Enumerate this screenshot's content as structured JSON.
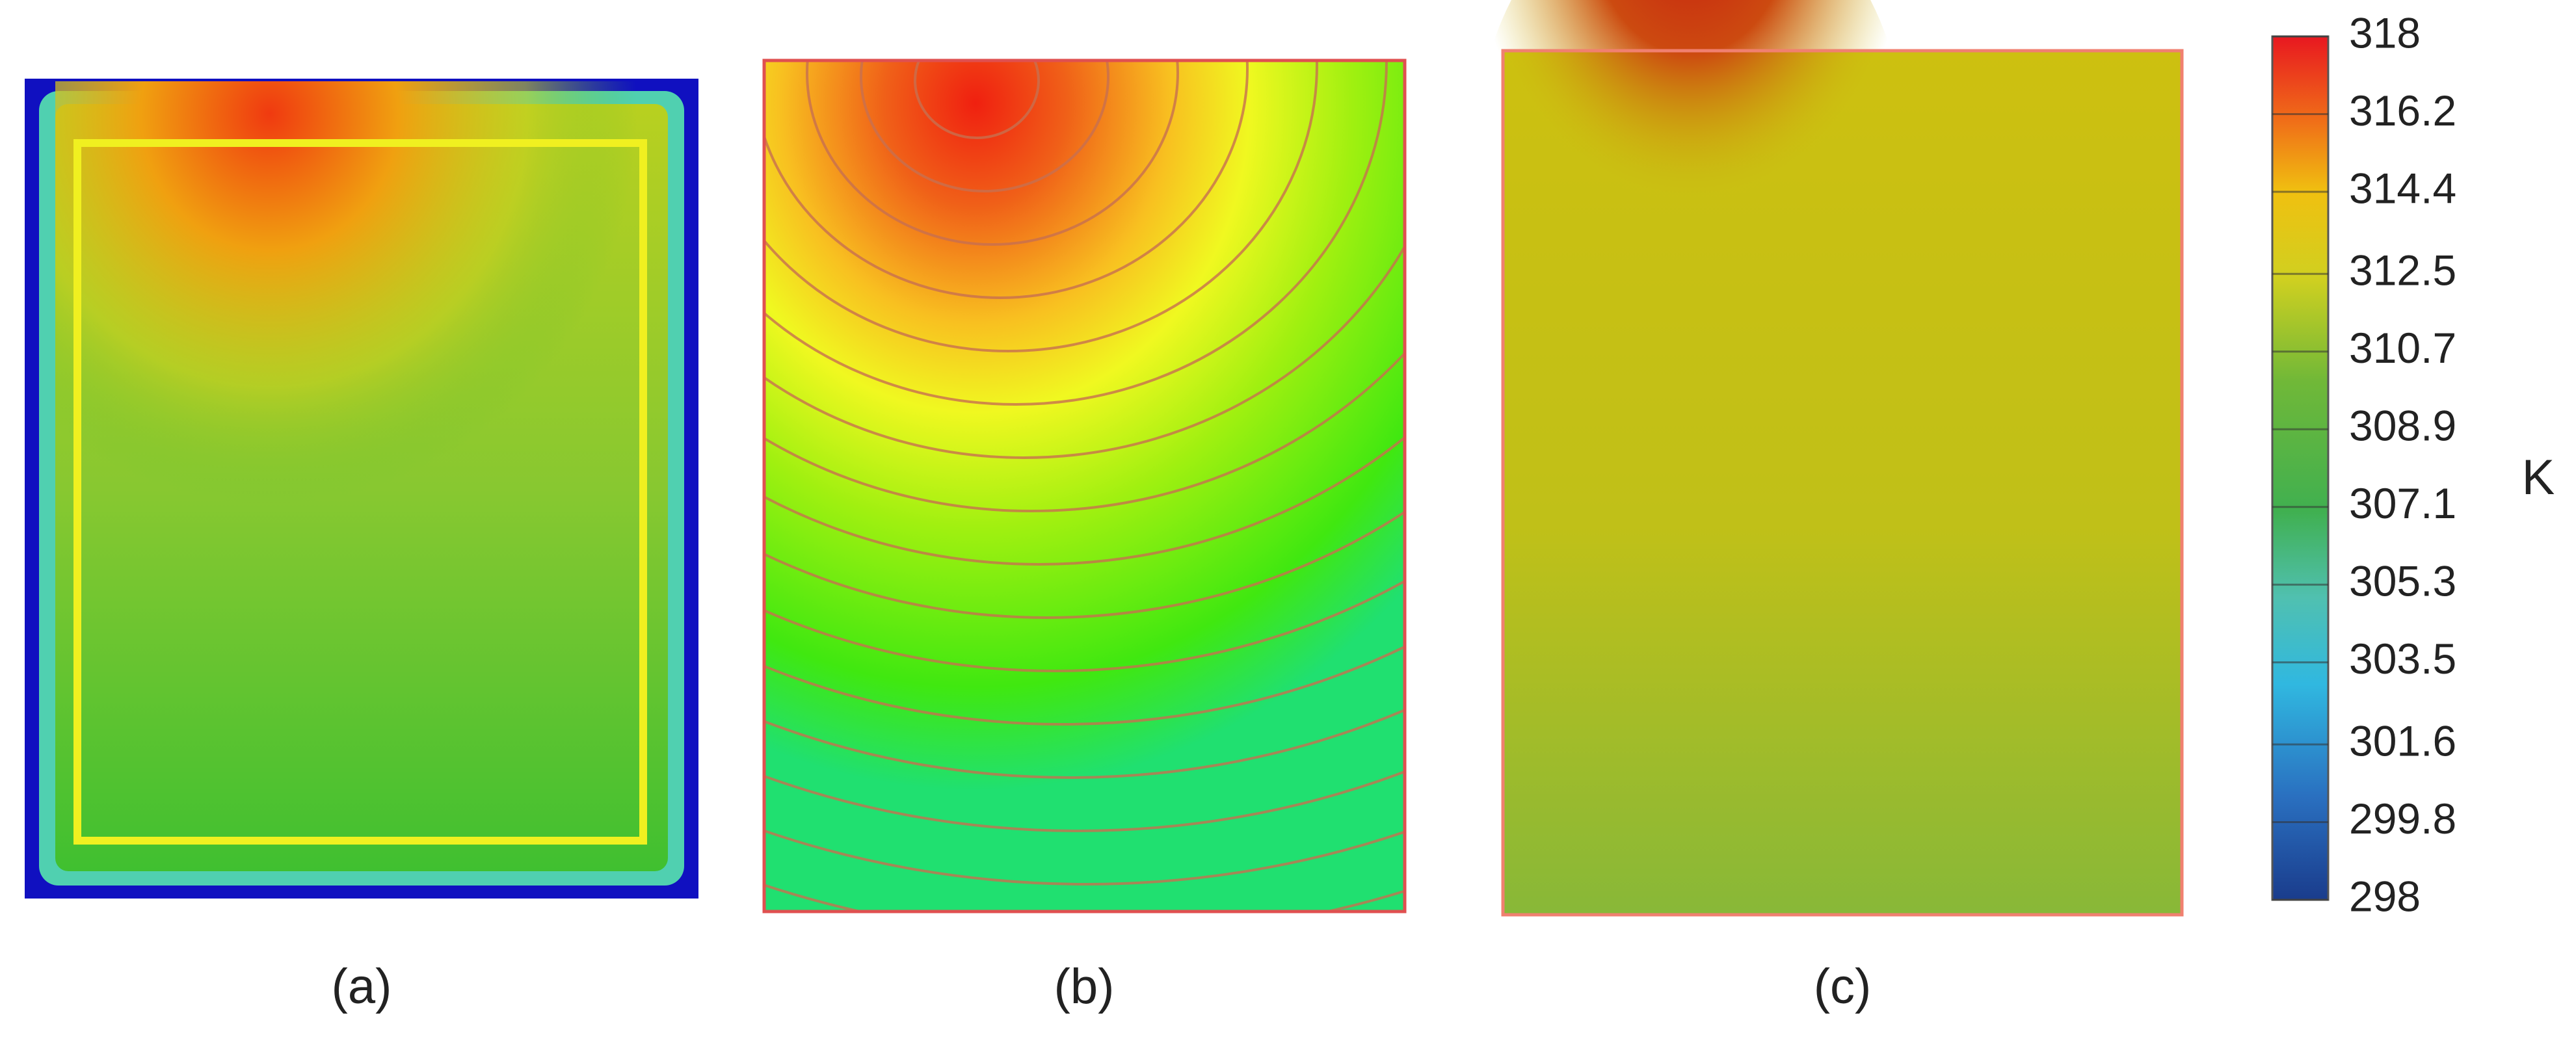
{
  "panels": [
    {
      "label": "(a)"
    },
    {
      "label": "(b)"
    },
    {
      "label": "(c)"
    }
  ],
  "colorbar": {
    "ticks": [
      318,
      316.2,
      314.4,
      312.5,
      310.7,
      308.9,
      307.1,
      305.3,
      303.5,
      301.6,
      299.8,
      298
    ],
    "unit": "K"
  }
}
